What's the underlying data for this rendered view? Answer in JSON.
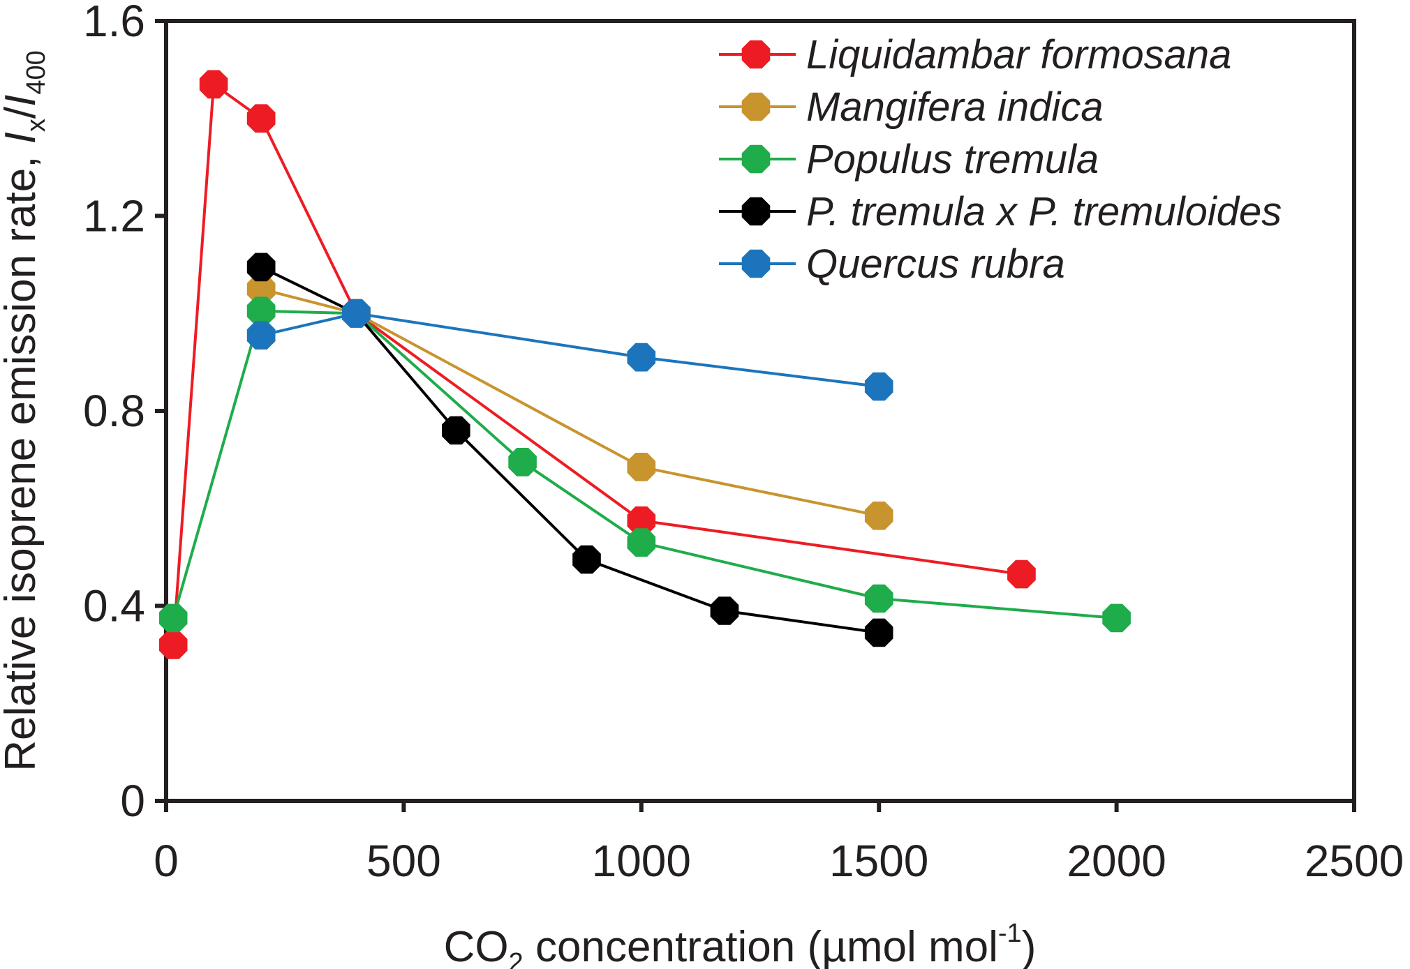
{
  "chart_data": {
    "type": "line",
    "xlabel": {
      "main": "CO",
      "sub": "2",
      "rest": " concentration (µmol mol",
      "sup": "-1",
      "end": ")"
    },
    "ylabel": {
      "main": "Relative isoprene emission rate, ",
      "i1": "I",
      "i1sub": "x",
      "slash": "/",
      "i2": "I",
      "i2sub": "400"
    },
    "xlim": [
      0,
      2500
    ],
    "ylim": [
      0,
      1.6
    ],
    "x_ticks": [
      {
        "value": 0,
        "label": "0"
      },
      {
        "value": 500,
        "label": "500"
      },
      {
        "value": 1000,
        "label": "1000"
      },
      {
        "value": 1500,
        "label": "1500"
      },
      {
        "value": 2000,
        "label": "2000"
      },
      {
        "value": 2500,
        "label": "2500"
      }
    ],
    "y_ticks": [
      {
        "value": 0,
        "label": "0"
      },
      {
        "value": 0.4,
        "label": "0.4"
      },
      {
        "value": 0.8,
        "label": "0.8"
      },
      {
        "value": 1.2,
        "label": "1.2"
      },
      {
        "value": 1.6,
        "label": "1.6"
      }
    ],
    "grid": false,
    "legend_position": "top-right",
    "series": [
      {
        "name": "Liquidambar formosana",
        "color": "#ed1c24",
        "points": [
          [
            15,
            0.32
          ],
          [
            100,
            1.47
          ],
          [
            200,
            1.4
          ],
          [
            400,
            1.0
          ],
          [
            1000,
            0.575
          ],
          [
            1800,
            0.465
          ]
        ]
      },
      {
        "name": "Mangifera indica",
        "color": "#c8942e",
        "points": [
          [
            200,
            1.05
          ],
          [
            400,
            1.0
          ],
          [
            1000,
            0.685
          ],
          [
            1500,
            0.585
          ]
        ]
      },
      {
        "name": "Populus tremula",
        "color": "#1fac4b",
        "points": [
          [
            15,
            0.375
          ],
          [
            200,
            1.005
          ],
          [
            400,
            1.0
          ],
          [
            750,
            0.695
          ],
          [
            1000,
            0.53
          ],
          [
            1500,
            0.415
          ],
          [
            2000,
            0.375
          ]
        ]
      },
      {
        "name": "P. tremula x P. tremuloides",
        "color": "#000000",
        "points": [
          [
            200,
            1.095
          ],
          [
            400,
            1.0
          ],
          [
            610,
            0.76
          ],
          [
            885,
            0.495
          ],
          [
            1175,
            0.39
          ],
          [
            1500,
            0.345
          ]
        ]
      },
      {
        "name": "Quercus rubra",
        "color": "#1c75bc",
        "points": [
          [
            200,
            0.955
          ],
          [
            400,
            1.0
          ],
          [
            1000,
            0.91
          ],
          [
            1500,
            0.85
          ]
        ]
      }
    ]
  }
}
